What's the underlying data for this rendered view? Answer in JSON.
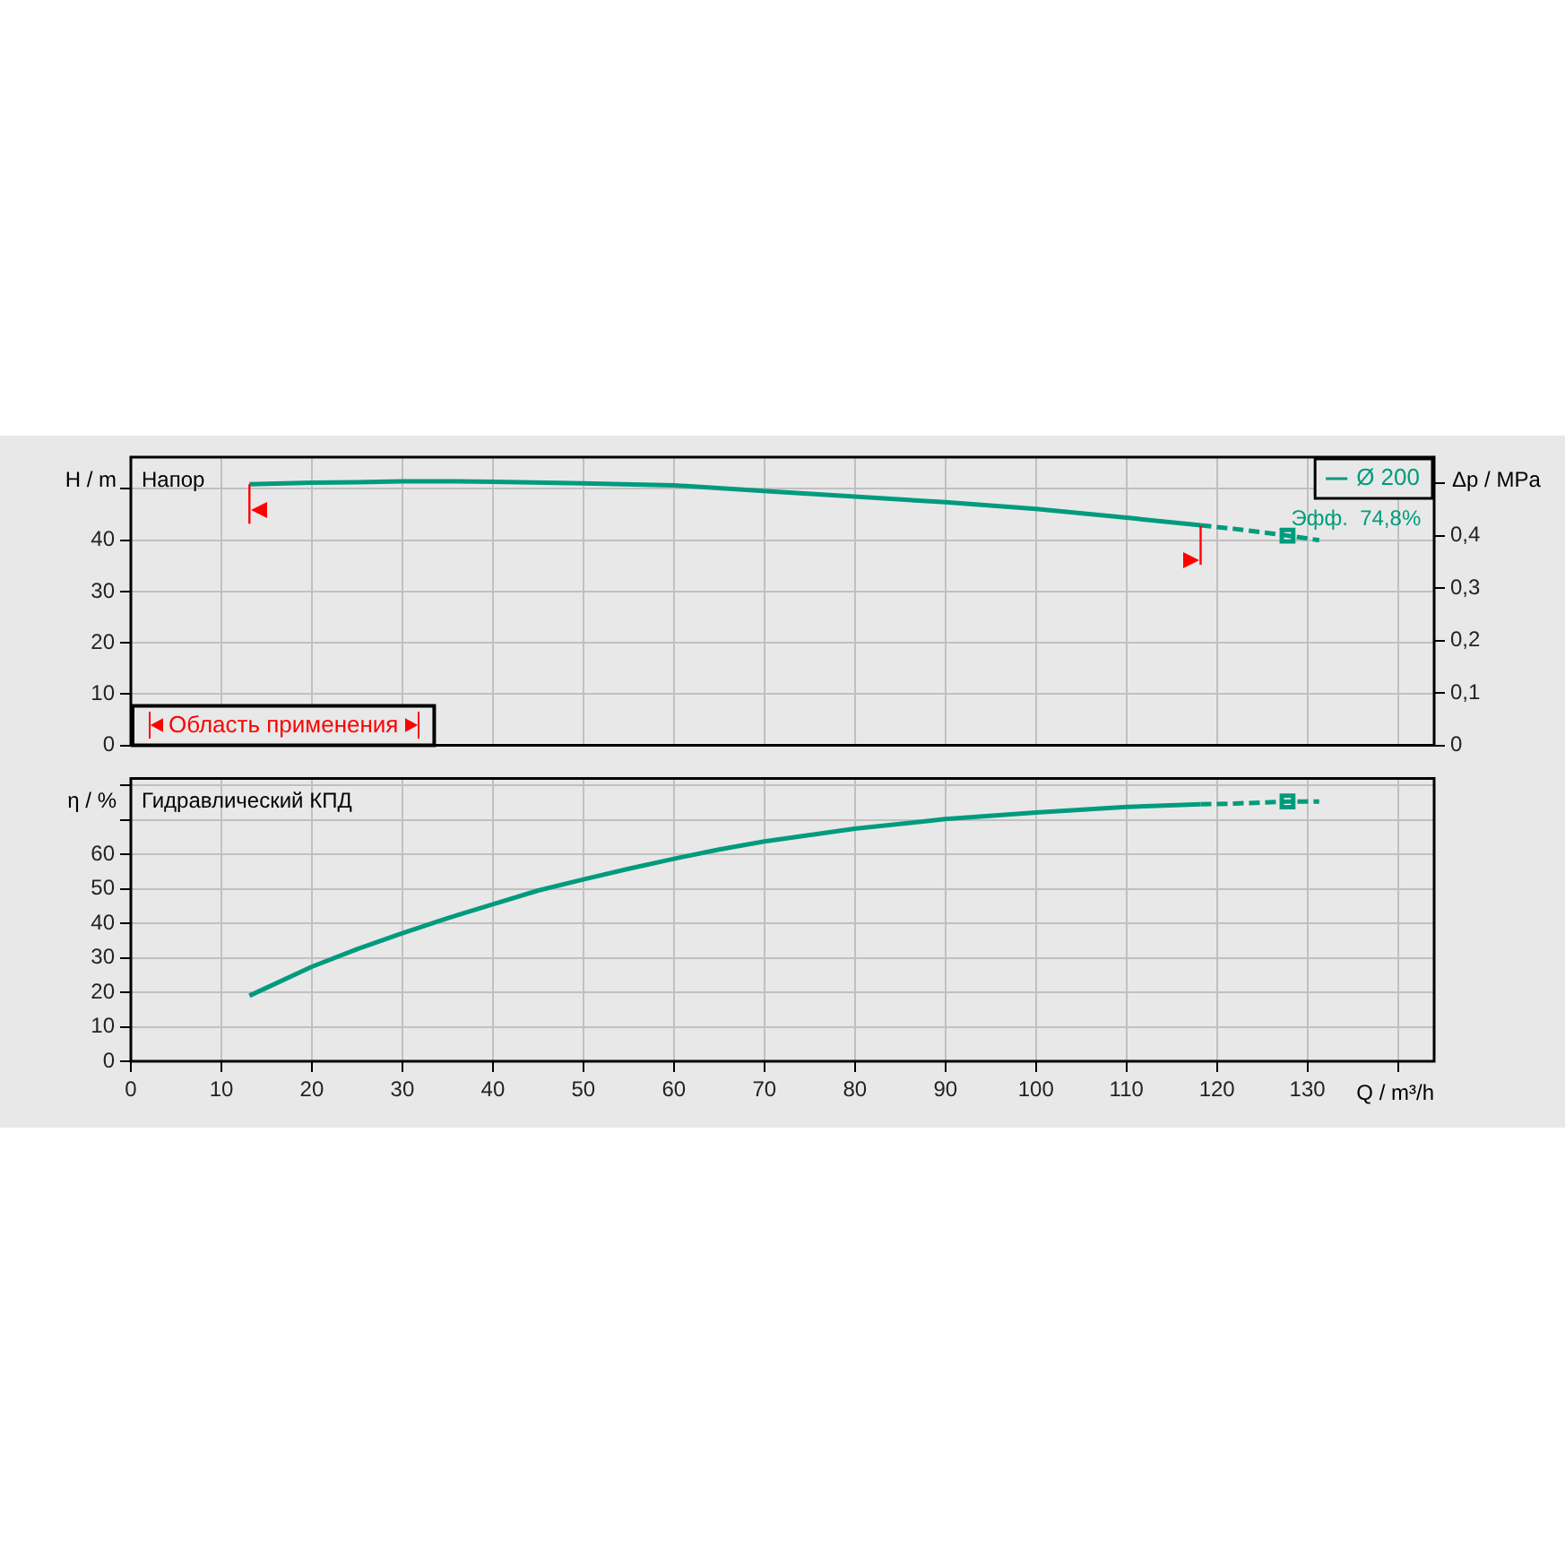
{
  "chart_data": [
    {
      "type": "line",
      "title": "Напор",
      "ylabel": "H / m",
      "y2label": "Δp / MPa",
      "xlim": [
        0,
        144
      ],
      "xticks": [
        0,
        10,
        20,
        30,
        40,
        50,
        60,
        70,
        80,
        90,
        100,
        110,
        120,
        130,
        {
          "value": 140,
          "label": null
        }
      ],
      "ylim": [
        0,
        56.2
      ],
      "yticks": [
        0,
        10,
        20,
        30,
        40,
        {
          "value": 50,
          "label": null
        }
      ],
      "y2lim": [
        0,
        0.55
      ],
      "y2ticks": [
        0,
        {
          "value": 0.1,
          "label": "0,1"
        },
        {
          "value": 0.2,
          "label": "0,2"
        },
        {
          "value": 0.3,
          "label": "0,3"
        },
        {
          "value": 0.4,
          "label": "0,4"
        },
        {
          "value": 0.5,
          "label": null
        }
      ],
      "tick_labels": "y",
      "grid": true,
      "legend": "top right",
      "ref_lines": [
        {
          "axis": "x",
          "value": 13.1,
          "color": "#ff0000"
        },
        {
          "axis": "x",
          "value": 118.2,
          "color": "#ff0000"
        }
      ],
      "annotations": [
        "Область применения",
        {
          "text": "Эфф.  74,8%",
          "x": 127.8,
          "y": 40.9
        }
      ],
      "series": [
        {
          "name": "Ø 200",
          "color": "#009b7d",
          "x": [
            13.1,
            20,
            25,
            30,
            35,
            40,
            50,
            60,
            70.7,
            80,
            90,
            100,
            110,
            118.2
          ],
          "values": [
            50.9,
            51.2,
            51.3,
            51.5,
            51.5,
            51.4,
            51.1,
            50.7,
            49.5,
            48.5,
            47.4,
            46.1,
            44.4,
            42.9
          ]
        },
        {
          "color": "#009b7d",
          "line_style": "dashed",
          "x": [
            118.2,
            122,
            127.8,
            131.3
          ],
          "values": [
            42.9,
            42.2,
            40.9,
            40.0
          ]
        },
        {
          "type": "scatter",
          "marker": "square",
          "color": "#009b7d",
          "x": [
            127.8
          ],
          "values": [
            40.9
          ]
        }
      ]
    },
    {
      "type": "line",
      "title": "Гидравлический КПД",
      "ylabel": "η / %",
      "xlabel": "Q / m³/h",
      "xlim": [
        0,
        144
      ],
      "xticks": [
        0,
        10,
        20,
        30,
        40,
        50,
        60,
        70,
        80,
        90,
        100,
        110,
        120,
        130,
        {
          "value": 140,
          "label": null
        }
      ],
      "ylim": [
        0,
        82
      ],
      "yticks": [
        0,
        10,
        20,
        30,
        40,
        50,
        60,
        {
          "value": 70,
          "label": null
        },
        {
          "value": 80,
          "label": null
        }
      ],
      "grid": true,
      "series": [
        {
          "color": "#009b7d",
          "x": [
            13.1,
            20,
            25,
            30,
            35,
            40,
            45,
            50,
            55,
            60,
            65,
            70,
            80,
            90,
            100,
            110,
            118.2
          ],
          "values": [
            19.0,
            27.4,
            32.5,
            37.1,
            41.5,
            45.5,
            49.5,
            52.7,
            55.8,
            58.7,
            61.4,
            63.7,
            67.4,
            70.2,
            72.1,
            73.7,
            74.5
          ]
        },
        {
          "color": "#009b7d",
          "line_style": "dashed",
          "x": [
            118.2,
            122,
            127.8,
            131.3
          ],
          "values": [
            74.5,
            74.7,
            75.3,
            75.3
          ]
        },
        {
          "type": "scatter",
          "marker": "square",
          "color": "#009b7d",
          "x": [
            127.8
          ],
          "values": [
            75.3
          ]
        }
      ]
    }
  ]
}
